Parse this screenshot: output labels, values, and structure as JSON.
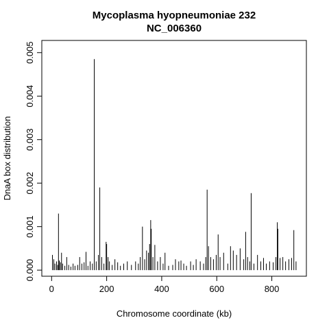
{
  "chart_data": {
    "type": "spike",
    "title": "Mycoplasma hyopneumoniae 232",
    "subtitle": "NC_006360",
    "xlabel": "Chromosome coordinate (kb)",
    "ylabel": "DnaA box distribution",
    "color": "#000000",
    "x": [
      3,
      8,
      12,
      18,
      22,
      25,
      28,
      32,
      36,
      40,
      48,
      55,
      62,
      70,
      78,
      85,
      95,
      102,
      110,
      118,
      125,
      132,
      140,
      148,
      155,
      162,
      170,
      175,
      182,
      190,
      198,
      200,
      205,
      210,
      220,
      230,
      240,
      250,
      262,
      275,
      290,
      305,
      315,
      322,
      330,
      338,
      345,
      352,
      356,
      360,
      362,
      368,
      375,
      385,
      395,
      405,
      412,
      425,
      440,
      450,
      462,
      470,
      480,
      490,
      505,
      515,
      525,
      540,
      552,
      560,
      565,
      570,
      578,
      588,
      598,
      605,
      612,
      625,
      640,
      650,
      660,
      672,
      685,
      698,
      705,
      712,
      720,
      725,
      735,
      748,
      760,
      770,
      780,
      792,
      805,
      815,
      820,
      822,
      830,
      840,
      850,
      862,
      872,
      880,
      888
    ],
    "values": [
      0.00035,
      0.00025,
      0.00015,
      0.0002,
      0.00012,
      0.0013,
      0.00022,
      0.00018,
      0.0004,
      0.00015,
      0.0001,
      0.0003,
      0.00012,
      8e-05,
      0.00015,
      0.0001,
      0.00012,
      0.0003,
      0.00015,
      0.00018,
      0.00042,
      0.0001,
      0.0002,
      0.00015,
      0.00485,
      0.0002,
      0.00035,
      0.0019,
      0.0003,
      0.00015,
      0.00065,
      0.0006,
      0.0003,
      0.0002,
      0.00012,
      0.00025,
      0.00018,
      0.0001,
      0.00015,
      0.0002,
      0.00012,
      0.0002,
      0.00015,
      0.0003,
      0.001,
      0.00025,
      0.00045,
      0.0004,
      0.0006,
      0.00115,
      0.00095,
      0.0003,
      0.00058,
      0.0002,
      0.0003,
      0.00015,
      0.0004,
      0.0001,
      0.00012,
      0.00025,
      0.0002,
      0.00022,
      0.00015,
      0.0001,
      0.0002,
      0.00012,
      0.00025,
      0.0002,
      0.00015,
      0.0003,
      0.00185,
      0.00055,
      0.0003,
      0.00025,
      0.00035,
      0.00082,
      0.0003,
      0.0004,
      0.00015,
      0.00055,
      0.00045,
      0.00035,
      0.0005,
      0.00025,
      0.00088,
      0.0003,
      0.0002,
      0.00177,
      0.00015,
      0.00035,
      0.0002,
      0.00028,
      0.00015,
      0.0002,
      0.00018,
      0.0003,
      0.0011,
      0.00095,
      0.00028,
      0.0003,
      0.0002,
      0.00025,
      0.00028,
      0.00092,
      0.0002
    ],
    "xlim": [
      -35.6,
      925.6
    ],
    "ylim": [
      -0.00014,
      0.00528
    ],
    "xticks": [
      0,
      200,
      400,
      600,
      800
    ],
    "yticks": [
      {
        "value": 0,
        "label": "0.000"
      },
      {
        "value": 0.001,
        "label": "0.001"
      },
      {
        "value": 0.002,
        "label": "0.002"
      },
      {
        "value": 0.003,
        "label": "0.003"
      },
      {
        "value": 0.004,
        "label": "0.004"
      },
      {
        "value": 0.005,
        "label": "0.005"
      }
    ]
  }
}
